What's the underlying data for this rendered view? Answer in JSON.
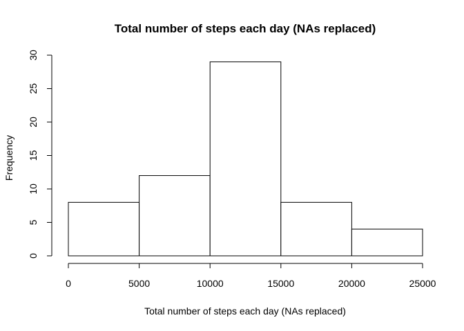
{
  "chart_data": {
    "type": "histogram",
    "title": "Total number of steps each day (NAs replaced)",
    "xlabel": "Total number of steps each day (NAs replaced)",
    "ylabel": "Frequency",
    "bins": [
      {
        "start": 0,
        "end": 5000,
        "count": 8
      },
      {
        "start": 5000,
        "end": 10000,
        "count": 12
      },
      {
        "start": 10000,
        "end": 15000,
        "count": 29
      },
      {
        "start": 15000,
        "end": 20000,
        "count": 8
      },
      {
        "start": 20000,
        "end": 25000,
        "count": 4
      }
    ],
    "xlim": [
      0,
      25000
    ],
    "ylim": [
      0,
      30
    ],
    "xticks": [
      "0",
      "5000",
      "10000",
      "15000",
      "20000",
      "25000"
    ],
    "yticks": [
      "0",
      "5",
      "10",
      "15",
      "20",
      "25",
      "30"
    ],
    "grid": false,
    "legend": "none",
    "bar_fill": "#ffffff",
    "bar_stroke": "#000000"
  }
}
